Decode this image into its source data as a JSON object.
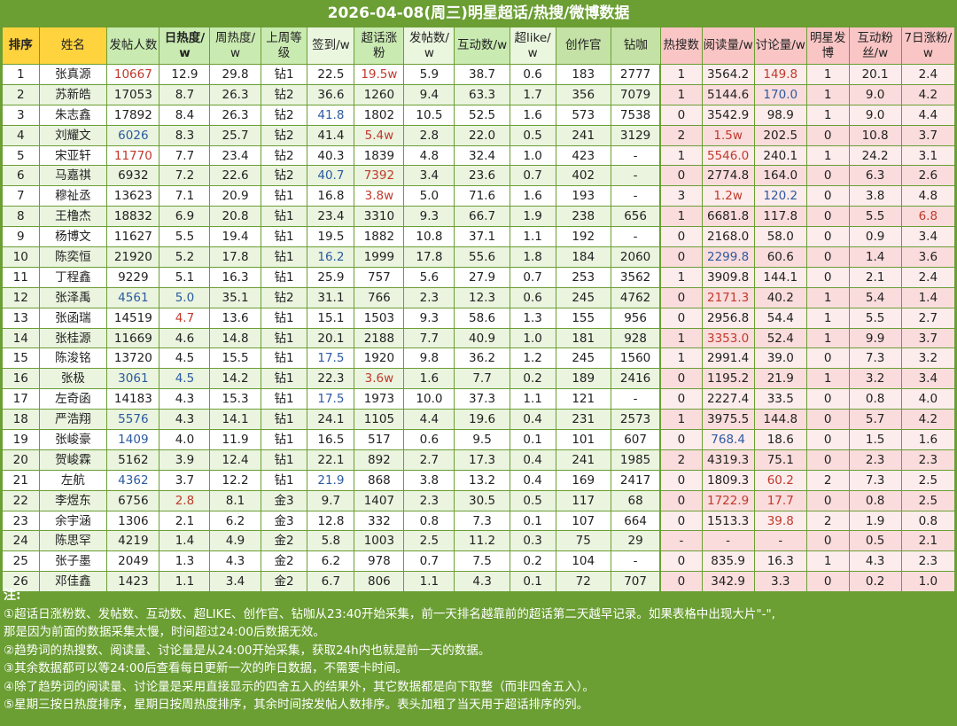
{
  "title": "2026-04-08(周三)明星超话/热搜/微博数据",
  "headers": [
    "排序",
    "姓名",
    "发帖人数",
    "日热度/w",
    "周热度/w",
    "上周等级",
    "签到/w",
    "超话涨粉",
    "发帖数/w",
    "互动数/w",
    "超like/w",
    "创作官",
    "钻咖",
    "热搜数",
    "阅读量/w",
    "讨论量/w",
    "明星发博",
    "互动粉丝/w",
    "7日涨粉/w"
  ],
  "rows": [
    [
      "1",
      "张真源",
      "10667",
      "12.9",
      "29.8",
      "钻1",
      "22.5",
      "19.5w",
      "5.9",
      "38.7",
      "0.6",
      "183",
      "2777",
      "1",
      "3564.2",
      "149.8",
      "1",
      "20.1",
      "2.4"
    ],
    [
      "2",
      "苏新皓",
      "17053",
      "8.7",
      "26.3",
      "钻2",
      "36.6",
      "1260",
      "9.4",
      "63.3",
      "1.7",
      "356",
      "7079",
      "1",
      "5144.6",
      "170.0",
      "1",
      "9.0",
      "4.2"
    ],
    [
      "3",
      "朱志鑫",
      "17892",
      "8.4",
      "26.3",
      "钻2",
      "41.8",
      "1802",
      "10.5",
      "52.5",
      "1.6",
      "573",
      "7538",
      "0",
      "3542.9",
      "98.9",
      "1",
      "9.0",
      "4.4"
    ],
    [
      "4",
      "刘耀文",
      "6026",
      "8.3",
      "25.7",
      "钻2",
      "41.4",
      "5.4w",
      "2.8",
      "22.0",
      "0.5",
      "241",
      "3129",
      "2",
      "1.5w",
      "202.5",
      "0",
      "10.8",
      "3.7"
    ],
    [
      "5",
      "宋亚轩",
      "11770",
      "7.7",
      "23.4",
      "钻2",
      "40.3",
      "1839",
      "4.8",
      "32.4",
      "1.0",
      "423",
      "-",
      "1",
      "5546.0",
      "240.1",
      "1",
      "24.2",
      "3.1"
    ],
    [
      "6",
      "马嘉祺",
      "6932",
      "7.2",
      "22.6",
      "钻2",
      "40.7",
      "7392",
      "3.4",
      "23.6",
      "0.7",
      "402",
      "-",
      "0",
      "2774.8",
      "164.0",
      "0",
      "6.3",
      "2.6"
    ],
    [
      "7",
      "穆祉丞",
      "13623",
      "7.1",
      "20.9",
      "钻1",
      "16.8",
      "3.8w",
      "5.0",
      "71.6",
      "1.6",
      "193",
      "-",
      "3",
      "1.2w",
      "120.2",
      "0",
      "3.8",
      "4.8"
    ],
    [
      "8",
      "王橹杰",
      "18832",
      "6.9",
      "20.8",
      "钻1",
      "23.4",
      "3310",
      "9.3",
      "66.7",
      "1.9",
      "238",
      "656",
      "1",
      "6681.8",
      "117.8",
      "0",
      "5.5",
      "6.8"
    ],
    [
      "9",
      "杨博文",
      "11627",
      "5.5",
      "19.4",
      "钻1",
      "19.5",
      "1882",
      "10.8",
      "37.1",
      "1.1",
      "192",
      "-",
      "0",
      "2168.0",
      "58.0",
      "0",
      "0.9",
      "3.4"
    ],
    [
      "10",
      "陈奕恒",
      "21920",
      "5.2",
      "17.8",
      "钻1",
      "16.2",
      "1999",
      "17.8",
      "55.6",
      "1.8",
      "184",
      "2060",
      "0",
      "2299.8",
      "60.6",
      "0",
      "1.4",
      "3.6"
    ],
    [
      "11",
      "丁程鑫",
      "9229",
      "5.1",
      "16.3",
      "钻1",
      "25.9",
      "757",
      "5.6",
      "27.9",
      "0.7",
      "253",
      "3562",
      "1",
      "3909.8",
      "144.1",
      "0",
      "2.1",
      "2.4"
    ],
    [
      "12",
      "张泽禹",
      "4561",
      "5.0",
      "35.1",
      "钻2",
      "31.1",
      "766",
      "2.3",
      "12.3",
      "0.6",
      "245",
      "4762",
      "0",
      "2171.3",
      "40.2",
      "1",
      "5.4",
      "1.4"
    ],
    [
      "13",
      "张函瑞",
      "14519",
      "4.7",
      "13.6",
      "钻1",
      "15.1",
      "1503",
      "9.3",
      "58.6",
      "1.3",
      "155",
      "956",
      "0",
      "2956.8",
      "54.4",
      "1",
      "5.5",
      "2.7"
    ],
    [
      "14",
      "张桂源",
      "11669",
      "4.6",
      "14.8",
      "钻1",
      "20.1",
      "2188",
      "7.7",
      "40.9",
      "1.0",
      "181",
      "928",
      "1",
      "3353.0",
      "52.4",
      "1",
      "9.9",
      "3.7"
    ],
    [
      "15",
      "陈浚铭",
      "13720",
      "4.5",
      "15.5",
      "钻1",
      "17.5",
      "1920",
      "9.8",
      "36.2",
      "1.2",
      "245",
      "1560",
      "1",
      "2991.4",
      "39.0",
      "0",
      "7.3",
      "3.2"
    ],
    [
      "16",
      "张极",
      "3061",
      "4.5",
      "14.2",
      "钻1",
      "22.3",
      "3.6w",
      "1.6",
      "7.7",
      "0.2",
      "189",
      "2416",
      "0",
      "1195.2",
      "21.9",
      "1",
      "3.2",
      "3.4"
    ],
    [
      "17",
      "左奇函",
      "14183",
      "4.3",
      "15.3",
      "钻1",
      "17.5",
      "1973",
      "10.0",
      "37.3",
      "1.1",
      "121",
      "-",
      "0",
      "2227.4",
      "33.5",
      "0",
      "0.8",
      "4.0"
    ],
    [
      "18",
      "严浩翔",
      "5576",
      "4.3",
      "14.1",
      "钻1",
      "24.1",
      "1105",
      "4.4",
      "19.6",
      "0.4",
      "231",
      "2573",
      "1",
      "3975.5",
      "144.8",
      "0",
      "5.7",
      "4.2"
    ],
    [
      "19",
      "张峻豪",
      "1409",
      "4.0",
      "11.9",
      "钻1",
      "16.5",
      "517",
      "0.6",
      "9.5",
      "0.1",
      "101",
      "607",
      "0",
      "768.4",
      "18.6",
      "0",
      "1.5",
      "1.6"
    ],
    [
      "20",
      "贺峻霖",
      "5162",
      "3.9",
      "12.4",
      "钻1",
      "22.1",
      "892",
      "2.7",
      "17.3",
      "0.4",
      "241",
      "1985",
      "2",
      "4319.3",
      "75.1",
      "0",
      "2.3",
      "2.3"
    ],
    [
      "21",
      "左航",
      "4362",
      "3.7",
      "12.2",
      "钻1",
      "21.9",
      "868",
      "3.8",
      "13.2",
      "0.4",
      "169",
      "2417",
      "0",
      "1809.3",
      "60.2",
      "2",
      "7.3",
      "2.5"
    ],
    [
      "22",
      "李煜东",
      "6756",
      "2.8",
      "8.1",
      "金3",
      "9.7",
      "1407",
      "2.3",
      "30.5",
      "0.5",
      "117",
      "68",
      "0",
      "1722.9",
      "17.7",
      "0",
      "0.8",
      "2.5"
    ],
    [
      "23",
      "余宇涵",
      "1306",
      "2.1",
      "6.2",
      "金3",
      "12.8",
      "332",
      "0.8",
      "7.3",
      "0.1",
      "107",
      "664",
      "0",
      "1513.3",
      "39.8",
      "2",
      "1.9",
      "0.8"
    ],
    [
      "24",
      "陈思罕",
      "4219",
      "1.4",
      "4.9",
      "金2",
      "5.8",
      "1003",
      "2.5",
      "11.2",
      "0.3",
      "75",
      "29",
      "-",
      "-",
      "-",
      "0",
      "0.5",
      "2.1"
    ],
    [
      "25",
      "张子墨",
      "2049",
      "1.3",
      "4.3",
      "金2",
      "6.2",
      "978",
      "0.7",
      "7.5",
      "0.2",
      "104",
      "-",
      "0",
      "835.9",
      "16.3",
      "1",
      "4.3",
      "2.3"
    ],
    [
      "26",
      "邓佳鑫",
      "1423",
      "1.1",
      "3.4",
      "金2",
      "6.7",
      "806",
      "1.1",
      "4.3",
      "0.1",
      "72",
      "707",
      "0",
      "342.9",
      "3.3",
      "0",
      "0.2",
      "1.0"
    ]
  ],
  "highlights": {
    "red": [
      [
        0,
        2
      ],
      [
        0,
        7
      ],
      [
        0,
        15
      ],
      [
        3,
        7
      ],
      [
        3,
        14
      ],
      [
        4,
        2
      ],
      [
        4,
        14
      ],
      [
        5,
        7
      ],
      [
        6,
        7
      ],
      [
        6,
        14
      ],
      [
        7,
        18
      ],
      [
        11,
        14
      ],
      [
        12,
        3
      ],
      [
        13,
        14
      ],
      [
        15,
        7
      ],
      [
        20,
        15
      ],
      [
        21,
        3
      ],
      [
        21,
        14
      ],
      [
        21,
        15
      ],
      [
        22,
        15
      ]
    ],
    "blue": [
      [
        1,
        15
      ],
      [
        2,
        6
      ],
      [
        3,
        2
      ],
      [
        5,
        6
      ],
      [
        6,
        15
      ],
      [
        9,
        6
      ],
      [
        9,
        14
      ],
      [
        11,
        2
      ],
      [
        11,
        3
      ],
      [
        14,
        6
      ],
      [
        15,
        2
      ],
      [
        15,
        3
      ],
      [
        16,
        6
      ],
      [
        17,
        2
      ],
      [
        18,
        2
      ],
      [
        18,
        14
      ],
      [
        20,
        2
      ],
      [
        20,
        6
      ]
    ]
  },
  "colors": {
    "frame_green": "#6b9e33",
    "header_yellow": "#ffd33d",
    "header_green": "#c9eab1",
    "header_pink": "#f9c5c5",
    "row_pink": "#fdecec",
    "highlight_red": "#c0392b",
    "highlight_blue": "#2c5aa0"
  },
  "notes": {
    "label": "注:",
    "lines": [
      "①超话日涨粉数、发帖数、互动数、超LIKE、创作官、钻咖从23:40开始采集，前一天排名越靠前的超话第二天越早记录。如果表格中出现大片\"-\",",
      "那是因为前面的数据采集太慢，时间超过24:00后数据无效。",
      "②趋势词的热搜数、阅读量、讨论量是从24:00开始采集，获取24h内也就是前一天的数据。",
      "③其余数据都可以等24:00后查看每日更新一次的昨日数据，不需要卡时间。",
      "④除了趋势词的阅读量、讨论量是采用直接显示的四舍五入的结果外，其它数据都是向下取整（而非四舍五入）。",
      "⑤星期三按日热度排序，星期日按周热度排序，其余时间按发帖人数排序。表头加粗了当天用于超话排序的列。"
    ]
  }
}
